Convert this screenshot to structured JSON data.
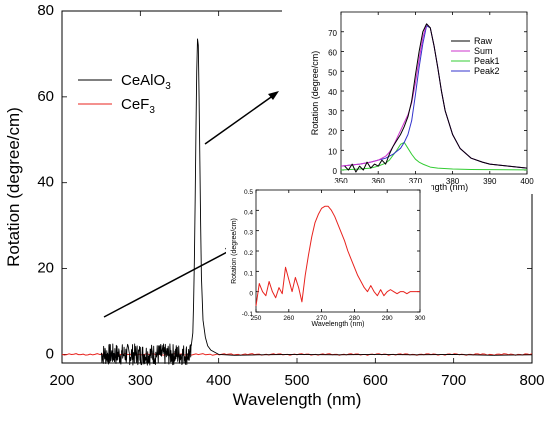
{
  "chart_data": [
    {
      "type": "line",
      "xlabel": "Wavelength (nm)",
      "ylabel": "Rotation (degree/cm)",
      "xlim": [
        200,
        800
      ],
      "ylim": [
        -2,
        80
      ],
      "xticks": [
        200,
        300,
        400,
        500,
        600,
        700,
        800
      ],
      "yticks": [
        0,
        20,
        40,
        60,
        80
      ],
      "legend": {
        "placement": "top-left"
      },
      "series": [
        {
          "name": "CeAlO",
          "name_subscript": "3",
          "color": "#000000",
          "noise_region": {
            "x": [
              250,
              365
            ],
            "amplitude": 2.5
          },
          "x": [
            365,
            367,
            368,
            369,
            370,
            371,
            372,
            373,
            374,
            375,
            376,
            377,
            378,
            380,
            383,
            386,
            390,
            395,
            400,
            420,
            450,
            500,
            550,
            600,
            650,
            700,
            750,
            800
          ],
          "y": [
            2,
            5,
            12,
            22,
            36,
            52,
            66,
            73.5,
            72,
            60,
            45,
            30,
            18,
            8,
            4,
            2,
            1,
            0.5,
            0,
            -0.2,
            -0.1,
            0,
            -0.1,
            0,
            -0.1,
            0,
            -0.2,
            -0.1
          ]
        },
        {
          "name": "CeF",
          "name_subscript": "3",
          "color": "#e8231e",
          "x": [
            200,
            800
          ],
          "y": [
            0,
            0
          ]
        }
      ]
    },
    {
      "type": "line",
      "xlabel": "Wavelength (nm)",
      "ylabel": "Rotation (degree/cm)",
      "xlim": [
        350,
        400
      ],
      "ylim": [
        -2,
        80
      ],
      "xticks": [
        350,
        360,
        370,
        380,
        390,
        400
      ],
      "yticks": [
        0,
        10,
        20,
        30,
        40,
        50,
        60,
        70
      ],
      "legend": {
        "placement": "top-right"
      },
      "series": [
        {
          "name": "Raw",
          "color": "#000000",
          "x": [
            351,
            352,
            353,
            354,
            355,
            356,
            357,
            358,
            359,
            360,
            361,
            362,
            363,
            364,
            365,
            366,
            367,
            368,
            369,
            370,
            371,
            372,
            373,
            374,
            375,
            376,
            377,
            378,
            380,
            382,
            385,
            388,
            390,
            395,
            400
          ],
          "y": [
            2,
            0,
            3,
            -1,
            2,
            0,
            4,
            1,
            3,
            2,
            5,
            3,
            8,
            12,
            15,
            18,
            22,
            27,
            35,
            48,
            60,
            70,
            74,
            72,
            63,
            52,
            40,
            30,
            18,
            11,
            6,
            4,
            3,
            2,
            1
          ]
        },
        {
          "name": "Sum",
          "color": "#cc33cc",
          "x": [
            350,
            355,
            358,
            360,
            362,
            363,
            364,
            365,
            366,
            367,
            368,
            369,
            370,
            371,
            372,
            373,
            374,
            375,
            376,
            377,
            378,
            380,
            382,
            385,
            388,
            390,
            395,
            400
          ],
          "y": [
            2,
            3,
            4,
            5,
            7,
            9,
            12,
            16,
            20,
            24,
            28,
            34,
            44,
            56,
            67,
            74,
            72,
            63,
            52,
            40,
            30,
            18,
            11,
            6,
            4,
            3,
            2,
            1
          ]
        },
        {
          "name": "Peak1",
          "color": "#33cc33",
          "x": [
            350,
            355,
            358,
            360,
            362,
            363,
            364,
            365,
            366,
            367,
            368,
            369,
            370,
            371,
            372,
            374,
            376,
            380,
            385,
            390,
            400
          ],
          "y": [
            0,
            0.5,
            1,
            2,
            3.5,
            5,
            7.5,
            10,
            13,
            14,
            11,
            8,
            5.5,
            4,
            3,
            1.5,
            1,
            0.5,
            0.3,
            0.2,
            0.1
          ]
        },
        {
          "name": "Peak2",
          "color": "#3333cc",
          "x": [
            350,
            355,
            358,
            360,
            362,
            364,
            366,
            367,
            368,
            369,
            370,
            371,
            372,
            373,
            374,
            375,
            376,
            377,
            378,
            380,
            382,
            385,
            388,
            390,
            395,
            400
          ],
          "y": [
            2,
            3,
            4,
            5,
            6,
            8,
            11,
            14,
            18,
            25,
            38,
            52,
            64,
            73,
            72,
            63,
            52,
            40,
            30,
            18,
            11,
            6,
            4,
            3,
            2,
            1
          ]
        }
      ]
    },
    {
      "type": "line",
      "xlabel": "Wavelength (nm)",
      "ylabel": "Rotation (degree/cm)",
      "xlim": [
        250,
        300
      ],
      "ylim": [
        -0.1,
        0.5
      ],
      "xticks": [
        250,
        260,
        270,
        280,
        290,
        300
      ],
      "yticks": [
        -0.1,
        0,
        0.1,
        0.2,
        0.3,
        0.4,
        0.5
      ],
      "series": [
        {
          "color": "#e8231e",
          "x": [
            250,
            251,
            252,
            253,
            254,
            255,
            256,
            257,
            258,
            259,
            260,
            261,
            262,
            263,
            264,
            265,
            266,
            267,
            268,
            269,
            270,
            271,
            272,
            273,
            274,
            275,
            276,
            277,
            278,
            279,
            280,
            281,
            282,
            283,
            284,
            285,
            286,
            287,
            288,
            289,
            290,
            291,
            292,
            293,
            294,
            295,
            296,
            297,
            298,
            299,
            300
          ],
          "y": [
            -0.07,
            0.04,
            0.0,
            -0.02,
            0.05,
            0.0,
            -0.03,
            0.02,
            -0.01,
            0.12,
            0.06,
            0.0,
            0.07,
            0.02,
            -0.05,
            0.08,
            0.18,
            0.27,
            0.34,
            0.38,
            0.41,
            0.42,
            0.42,
            0.4,
            0.37,
            0.33,
            0.29,
            0.25,
            0.2,
            0.16,
            0.12,
            0.08,
            0.05,
            0.02,
            0.0,
            0.03,
            0.0,
            -0.02,
            0.01,
            -0.02,
            0.0,
            0.01,
            0.0,
            -0.01,
            0.0,
            0.0,
            -0.01,
            0.0,
            0.0,
            0.0,
            0.0
          ]
        }
      ]
    }
  ]
}
